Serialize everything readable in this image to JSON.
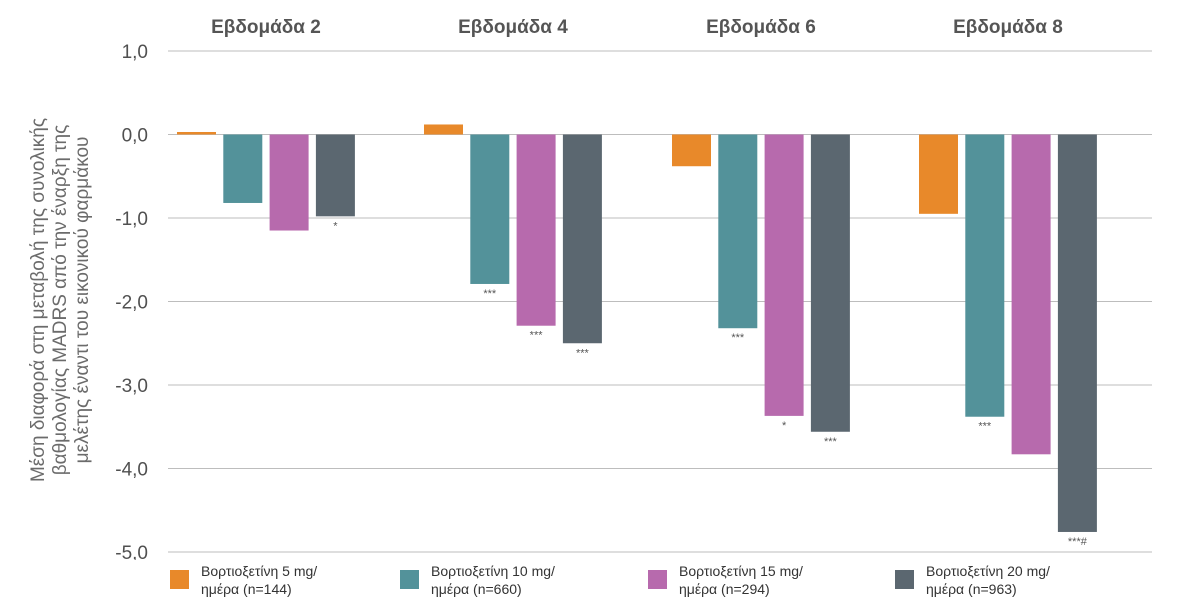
{
  "chart_data": {
    "type": "bar",
    "ylabel": "Μέση διαφορά στη μεταβολή της συνολικής βαθμολογίας MADRS από την έναρξη της μελέτης έναντι του εικονικού φαρμάκου",
    "ylabel_lines": [
      "Μέση διαφορά στη μεταβολή της συνολικής",
      "βαθμολογίας MADRS από την έναρξη της",
      "μελέτης έναντι του εικονικού φαρμάκου"
    ],
    "categories": [
      "Εβδομάδα 2",
      "Εβδομάδα 4",
      "Εβδομάδα 6",
      "Εβδομάδα 8"
    ],
    "ylim": [
      -5.0,
      1.0
    ],
    "yticks": [
      1.0,
      0.0,
      -1.0,
      -2.0,
      -3.0,
      -4.0,
      -5.0
    ],
    "ytick_labels": [
      "1,0",
      "0,0",
      "-1,0",
      "-2,0",
      "-3,0",
      "-4,0",
      "-5,0"
    ],
    "grid": true,
    "legend_position": "bottom",
    "series": [
      {
        "name": "Βορτιοξετίνη 5 mg/\nημέρα (n=144)",
        "color": "#E8892A",
        "values": [
          0.03,
          0.12,
          -0.38,
          -0.95
        ],
        "annotations": [
          "",
          "",
          "",
          ""
        ]
      },
      {
        "name": "Βορτιοξετίνη 10 mg/\nημέρα (n=660)",
        "color": "#53929A",
        "values": [
          -0.82,
          -1.79,
          -2.32,
          -3.38
        ],
        "annotations": [
          "",
          "***",
          "***",
          "***"
        ]
      },
      {
        "name": "Βορτιοξετίνη 15 mg/\nημέρα (n=294)",
        "color": "#B76AAD",
        "values": [
          -1.15,
          -2.29,
          -3.37,
          -3.83
        ],
        "annotations": [
          "",
          "***",
          "*",
          ""
        ]
      },
      {
        "name": "Βορτιοξετίνη 20 mg/\nημέρα (n=963)",
        "color": "#5B6770",
        "values": [
          -0.98,
          -2.5,
          -3.56,
          -4.76
        ],
        "annotations": [
          "*",
          "***",
          "***",
          "***#"
        ]
      }
    ]
  }
}
